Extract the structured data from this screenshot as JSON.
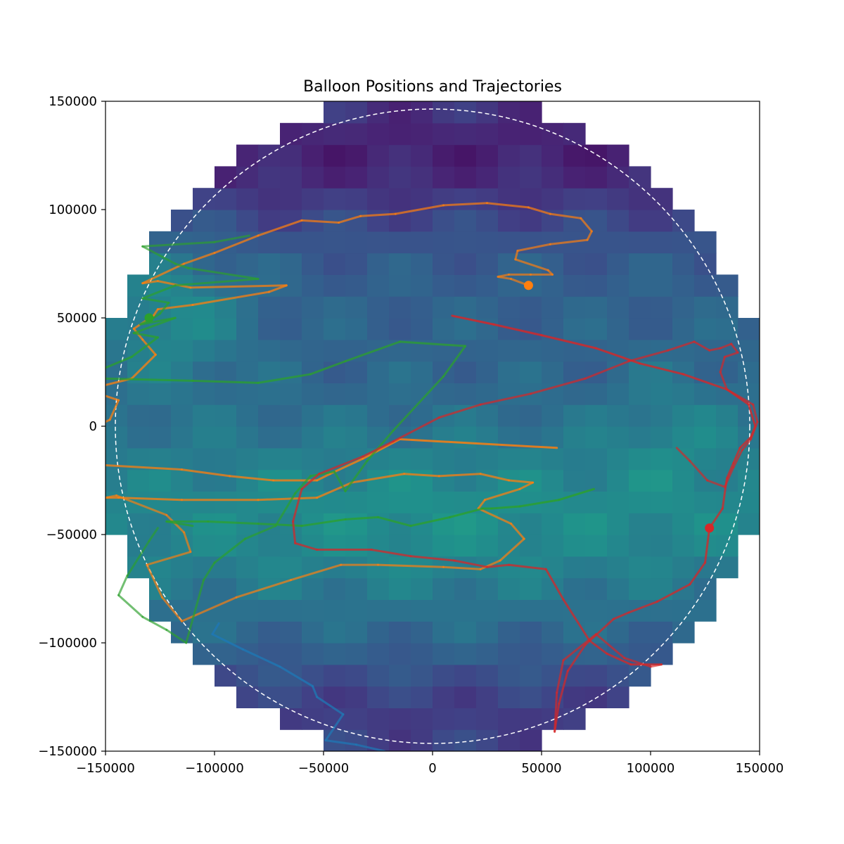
{
  "chart_data": {
    "type": "heatmap",
    "title": "Balloon Positions and Trajectories",
    "xlabel": "",
    "ylabel": "",
    "xlim": [
      -150000,
      150000
    ],
    "ylim": [
      -150000,
      150000
    ],
    "x_ticks": [
      -150000,
      -100000,
      -50000,
      0,
      50000,
      100000,
      150000
    ],
    "y_ticks": [
      -150000,
      -100000,
      -50000,
      0,
      50000,
      100000,
      150000
    ],
    "x_tick_labels": [
      "−150000",
      "−100000",
      "−50000",
      "0",
      "50000",
      "100000",
      "150000"
    ],
    "y_tick_labels": [
      "−150000",
      "−100000",
      "−50000",
      "0",
      "50000",
      "100000",
      "150000"
    ],
    "grid": false,
    "colormap": "viridis",
    "field_domain": {
      "shape": "circle",
      "center": [
        0,
        0
      ],
      "radius": 150000
    },
    "field_cell_size": 10000,
    "field_boundary_style": "white dashed circle",
    "colors": {
      "blue": "#1f77b4",
      "orange": "#ff7f0e",
      "green": "#2ca02c",
      "red": "#d62728",
      "boundary": "#ffffff"
    },
    "series": [
      {
        "color": "#1f77b4",
        "current_position": null,
        "path": [
          [
            -98000,
            -91000
          ],
          [
            -101000,
            -96000
          ],
          [
            -87000,
            -103000
          ],
          [
            -70000,
            -111000
          ],
          [
            -55000,
            -120000
          ],
          [
            -53000,
            -125000
          ],
          [
            -41000,
            -133000
          ],
          [
            -49000,
            -145000
          ],
          [
            -35000,
            -147000
          ],
          [
            -22000,
            -150000
          ]
        ]
      },
      {
        "color": "#ff7f0e",
        "current_position": [
          44000,
          65000
        ],
        "path": [
          [
            57000,
            -10000
          ],
          [
            -15000,
            -6000
          ],
          [
            -32000,
            -15000
          ],
          [
            -47000,
            -22000
          ],
          [
            -53000,
            -25000
          ],
          [
            -73000,
            -25000
          ],
          [
            -93000,
            -23000
          ],
          [
            -115000,
            -20000
          ],
          [
            -150000,
            -18000
          ]
        ],
        "path2": [
          [
            -150000,
            -33000
          ],
          [
            -144000,
            -33000
          ],
          [
            -115000,
            -34000
          ],
          [
            -80000,
            -34000
          ],
          [
            -53000,
            -33000
          ],
          [
            -37000,
            -26000
          ],
          [
            -13000,
            -22000
          ],
          [
            3000,
            -23000
          ],
          [
            22000,
            -22000
          ],
          [
            35000,
            -25000
          ],
          [
            46000,
            -26000
          ],
          [
            40000,
            -29000
          ],
          [
            24000,
            -34000
          ],
          [
            21000,
            -38000
          ],
          [
            36000,
            -45000
          ],
          [
            42000,
            -52000
          ],
          [
            31000,
            -62000
          ],
          [
            22000,
            -66000
          ],
          [
            5000,
            -65000
          ],
          [
            -25000,
            -64000
          ],
          [
            -42000,
            -64000
          ],
          [
            -65000,
            -71000
          ],
          [
            -90000,
            -79000
          ],
          [
            -115000,
            -90000
          ],
          [
            -124000,
            -79000
          ],
          [
            -131000,
            -64000
          ],
          [
            -111000,
            -58000
          ],
          [
            -114000,
            -49000
          ],
          [
            -122000,
            -41000
          ],
          [
            -145000,
            -32000
          ],
          [
            -150000,
            -33000
          ]
        ],
        "path3": [
          [
            -150000,
            14000
          ],
          [
            -144000,
            12000
          ],
          [
            -148000,
            3000
          ],
          [
            -150000,
            2000
          ]
        ],
        "path4": [
          [
            -150000,
            19000
          ],
          [
            -138000,
            22000
          ],
          [
            -127000,
            33000
          ],
          [
            -133000,
            40000
          ],
          [
            -137000,
            45000
          ],
          [
            -128000,
            51000
          ],
          [
            -126000,
            54000
          ],
          [
            -110000,
            56000
          ],
          [
            -75000,
            62000
          ],
          [
            -67000,
            65000
          ],
          [
            -111000,
            64000
          ],
          [
            -126000,
            67000
          ],
          [
            -133000,
            66000
          ],
          [
            -114000,
            75000
          ],
          [
            -100000,
            80000
          ],
          [
            -80000,
            88000
          ],
          [
            -60000,
            95000
          ],
          [
            -43000,
            94000
          ],
          [
            -33000,
            97000
          ],
          [
            -17000,
            98000
          ],
          [
            5000,
            102000
          ],
          [
            25000,
            103000
          ],
          [
            44000,
            101000
          ],
          [
            54000,
            98000
          ],
          [
            68000,
            96000
          ],
          [
            73000,
            90000
          ],
          [
            71000,
            86000
          ],
          [
            54000,
            84000
          ],
          [
            39000,
            81000
          ],
          [
            38000,
            77000
          ],
          [
            53000,
            72000
          ],
          [
            55000,
            70000
          ],
          [
            45000,
            70000
          ],
          [
            35000,
            70000
          ],
          [
            30000,
            69000
          ],
          [
            36000,
            68000
          ],
          [
            44000,
            65000
          ]
        ]
      },
      {
        "color": "#2ca02c",
        "current_position": [
          -130000,
          50000
        ],
        "path": [
          [
            74000,
            -29000
          ],
          [
            58000,
            -34000
          ],
          [
            40000,
            -37000
          ],
          [
            27000,
            -38000
          ],
          [
            23000,
            -38000
          ],
          [
            8000,
            -42000
          ],
          [
            -10000,
            -46000
          ],
          [
            -25000,
            -42000
          ],
          [
            -40000,
            -43000
          ],
          [
            -60000,
            -46000
          ],
          [
            -80000,
            -45000
          ],
          [
            -103000,
            -44000
          ],
          [
            -122000,
            -44000
          ],
          [
            -110000,
            -46000
          ]
        ],
        "path2": [
          [
            -150000,
            27000
          ],
          [
            -138000,
            32000
          ],
          [
            -126000,
            41000
          ],
          [
            -137000,
            43000
          ],
          [
            -118000,
            50000
          ],
          [
            -134000,
            47000
          ],
          [
            -128000,
            50000
          ],
          [
            -125000,
            52000
          ],
          [
            -121000,
            57000
          ],
          [
            -133000,
            59000
          ],
          [
            -118000,
            65000
          ],
          [
            -80000,
            68000
          ],
          [
            -112000,
            73000
          ],
          [
            -118000,
            75000
          ],
          [
            -133000,
            83000
          ],
          [
            -100000,
            85000
          ],
          [
            -84000,
            88000
          ]
        ],
        "path3": [
          [
            -150000,
            22000
          ],
          [
            -110000,
            21000
          ],
          [
            -80000,
            20000
          ],
          [
            -56000,
            24000
          ],
          [
            -40000,
            30000
          ],
          [
            -15000,
            39000
          ],
          [
            15000,
            37000
          ],
          [
            5000,
            23000
          ],
          [
            -18000,
            -2000
          ],
          [
            -30000,
            -16000
          ],
          [
            -40000,
            -30000
          ],
          [
            -45000,
            -21000
          ],
          [
            -56000,
            -23000
          ],
          [
            -63000,
            -31000
          ],
          [
            -72000,
            -46000
          ],
          [
            -86000,
            -52000
          ],
          [
            -100000,
            -63000
          ],
          [
            -105000,
            -71000
          ],
          [
            -113000,
            -100000
          ],
          [
            -122000,
            -94000
          ],
          [
            -133000,
            -88000
          ],
          [
            -144000,
            -78000
          ],
          [
            -140000,
            -69000
          ],
          [
            -130000,
            -53000
          ],
          [
            -126000,
            -47000
          ]
        ]
      },
      {
        "color": "#d62728",
        "current_position": [
          127000,
          -47000
        ],
        "path": [
          [
            9000,
            51000
          ],
          [
            28000,
            47000
          ],
          [
            50000,
            42000
          ],
          [
            75000,
            36000
          ],
          [
            95000,
            29000
          ],
          [
            115000,
            24000
          ],
          [
            135000,
            17000
          ],
          [
            145000,
            10000
          ],
          [
            148000,
            0
          ],
          [
            146000,
            -5000
          ],
          [
            141000,
            -10000
          ],
          [
            138000,
            -17000
          ],
          [
            135000,
            -24000
          ],
          [
            133000,
            -38000
          ],
          [
            127000,
            -47000
          ]
        ],
        "path2": [
          [
            127000,
            -47000
          ],
          [
            125000,
            -63000
          ],
          [
            118000,
            -73000
          ],
          [
            103000,
            -81000
          ],
          [
            90000,
            -86000
          ],
          [
            83000,
            -89000
          ],
          [
            70000,
            -101000
          ],
          [
            62000,
            -113000
          ],
          [
            58000,
            -128000
          ],
          [
            56000,
            -141000
          ],
          [
            57000,
            -123000
          ],
          [
            60000,
            -108000
          ],
          [
            75000,
            -96000
          ],
          [
            88000,
            -107000
          ],
          [
            100000,
            -111000
          ],
          [
            105000,
            -110000
          ]
        ],
        "path3": [
          [
            105000,
            -110000
          ],
          [
            91000,
            -110000
          ],
          [
            80000,
            -105000
          ],
          [
            72000,
            -99000
          ],
          [
            60000,
            -80000
          ],
          [
            52000,
            -66000
          ],
          [
            35000,
            -64000
          ],
          [
            25000,
            -65000
          ],
          [
            10000,
            -62000
          ],
          [
            -10000,
            -60000
          ],
          [
            -28000,
            -57000
          ],
          [
            -53000,
            -57000
          ],
          [
            -63000,
            -54000
          ],
          [
            -64000,
            -44000
          ],
          [
            -60000,
            -29000
          ],
          [
            -52000,
            -22000
          ],
          [
            -32000,
            -14000
          ],
          [
            -18000,
            -7000
          ],
          [
            3000,
            4000
          ],
          [
            22000,
            10000
          ],
          [
            45000,
            15000
          ],
          [
            70000,
            22000
          ],
          [
            90000,
            30000
          ],
          [
            108000,
            35000
          ],
          [
            120000,
            39000
          ],
          [
            127000,
            35000
          ],
          [
            132000,
            36000
          ],
          [
            137000,
            38000
          ],
          [
            140000,
            34000
          ],
          [
            134000,
            32000
          ],
          [
            132000,
            25000
          ],
          [
            135000,
            17000
          ],
          [
            147000,
            10000
          ],
          [
            149000,
            2000
          ],
          [
            146000,
            -6000
          ],
          [
            142000,
            -11000
          ],
          [
            138000,
            -19000
          ],
          [
            134000,
            -28000
          ],
          [
            126000,
            -25000
          ],
          [
            118000,
            -16000
          ],
          [
            112000,
            -10000
          ]
        ]
      }
    ]
  }
}
